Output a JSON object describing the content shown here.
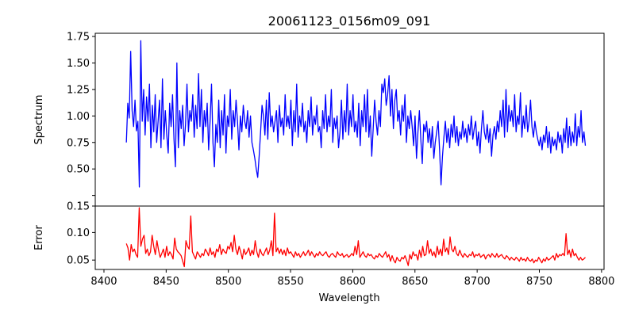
{
  "chart_data": [
    {
      "type": "line",
      "title": "20061123_0156m09_091",
      "xlabel": "",
      "ylabel": "Spectrum",
      "xlim": [
        8393,
        8802
      ],
      "ylim": [
        0.15,
        1.78
      ],
      "xticks": [
        8400,
        8450,
        8500,
        8550,
        8600,
        8650,
        8700,
        8750,
        8800
      ],
      "xtick_labels": [
        "8400",
        "8450",
        "8500",
        "8550",
        "8600",
        "8650",
        "8700",
        "8750",
        "8800"
      ],
      "yticks": [
        0.15,
        0.25,
        0.5,
        0.75,
        1.0,
        1.25,
        1.5,
        1.75
      ],
      "ytick_labels": [
        "0.15",
        "",
        "0.50",
        "0.75",
        "1.00",
        "1.25",
        "1.50",
        "1.75"
      ],
      "series": [
        {
          "name": "Spectrum",
          "color": "#0000ff",
          "x_start": 8418,
          "x_end": 8787,
          "values": [
            0.75,
            1.12,
            0.98,
            1.61,
            1.05,
            0.9,
            1.15,
            0.86,
            0.95,
            0.33,
            1.71,
            0.95,
            1.25,
            0.82,
            1.18,
            0.95,
            1.3,
            0.7,
            1.1,
            0.85,
            1.2,
            0.75,
            0.95,
            1.15,
            0.7,
            1.35,
            0.78,
            1.05,
            0.82,
            0.65,
            1.12,
            0.9,
            1.2,
            0.78,
            0.52,
            1.5,
            0.7,
            1.05,
            0.88,
            1.1,
            0.72,
            0.92,
            1.3,
            0.85,
            1.05,
            0.95,
            1.2,
            0.8,
            1.1,
            0.88,
            1.4,
            0.9,
            1.25,
            0.75,
            1.05,
            0.9,
            1.12,
            0.68,
            0.95,
            1.3,
            0.75,
            0.52,
            0.92,
            0.75,
            1.15,
            0.7,
            1.05,
            0.82,
            1.2,
            0.65,
            1.0,
            0.9,
            1.25,
            0.78,
            1.05,
            0.9,
            1.15,
            0.95,
            0.68,
            1.0,
            0.85,
            1.1,
            0.95,
            0.88,
            1.05,
            0.8,
            1.0,
            0.75,
            0.68,
            0.6,
            0.5,
            0.42,
            0.62,
            0.85,
            1.1,
            1.0,
            0.82,
            1.15,
            0.78,
            1.22,
            0.9,
            1.0,
            0.85,
            0.95,
            1.05,
            0.75,
            1.1,
            0.9,
            0.98,
            0.82,
            1.2,
            0.9,
            1.0,
            0.88,
            1.15,
            0.72,
            1.05,
            0.85,
            1.3,
            0.8,
            1.0,
            0.9,
            1.12,
            0.85,
            0.95,
            0.75,
            1.05,
            0.9,
            1.18,
            0.82,
            1.0,
            0.92,
            1.1,
            0.85,
            0.9,
            0.7,
            1.05,
            0.88,
            1.2,
            0.85,
            1.0,
            0.9,
            1.25,
            0.75,
            0.98,
            0.88,
            1.0,
            0.7,
            0.85,
            1.15,
            0.78,
            1.05,
            0.85,
            1.3,
            0.82,
            1.05,
            0.9,
            1.2,
            0.85,
            0.95,
            0.8,
            1.12,
            0.72,
            1.05,
            0.9,
            1.2,
            0.85,
            1.25,
            0.8,
            1.0,
            0.62,
            0.88,
            1.15,
            0.95,
            0.82,
            1.05,
            0.9,
            1.3,
            1.22,
            1.35,
            1.1,
            1.2,
            1.38,
            1.0,
            1.25,
            0.88,
            1.15,
            1.25,
            0.95,
            1.05,
            0.82,
            1.1,
            0.95,
            1.2,
            0.75,
            1.0,
            0.88,
            1.05,
            0.9,
            0.72,
            1.0,
            0.6,
            0.85,
            1.05,
            0.78,
            0.55,
            0.92,
            0.85,
            0.95,
            0.75,
            0.88,
            0.7,
            0.9,
            0.6,
            0.75,
            0.85,
            0.95,
            0.68,
            0.35,
            0.62,
            0.8,
            0.95,
            0.75,
            0.88,
            0.7,
            0.92,
            0.8,
            1.0,
            0.75,
            0.9,
            0.72,
            0.85,
            0.78,
            0.95,
            0.8,
            0.88,
            0.75,
            0.92,
            0.82,
            1.0,
            0.78,
            0.88,
            0.95,
            0.72,
            0.85,
            0.65,
            0.88,
            1.05,
            0.85,
            0.78,
            0.92,
            0.75,
            0.88,
            0.62,
            0.82,
            0.9,
            0.78,
            0.95,
            0.85,
            1.05,
            0.9,
            1.15,
            0.8,
            1.25,
            0.85,
            1.1,
            0.95,
            1.05,
            0.9,
            1.2,
            0.85,
            1.0,
            0.92,
            1.22,
            0.8,
            1.0,
            0.88,
            1.1,
            0.85,
            0.95,
            1.15,
            0.9,
            0.8,
            0.95,
            0.85,
            0.78,
            0.72,
            0.8,
            0.68,
            0.82,
            0.75,
            0.9,
            0.7,
            0.85,
            0.65,
            0.8,
            0.72,
            0.78,
            0.68,
            0.85,
            0.75,
            0.82,
            0.65,
            0.88,
            0.75,
            0.98,
            0.7,
            0.9,
            0.72,
            0.85,
            0.75,
            1.02,
            0.72,
            0.9,
            0.8,
            1.05,
            0.75,
            0.85,
            0.72
          ]
        }
      ]
    },
    {
      "type": "line",
      "title": "",
      "xlabel": "Wavelength",
      "ylabel": "Error",
      "xlim": [
        8393,
        8802
      ],
      "ylim": [
        0.033,
        0.148
      ],
      "xticks": [
        8400,
        8450,
        8500,
        8550,
        8600,
        8650,
        8700,
        8750,
        8800
      ],
      "xtick_labels": [
        "8400",
        "8450",
        "8500",
        "8550",
        "8600",
        "8650",
        "8700",
        "8750",
        "8800"
      ],
      "yticks": [
        0.05,
        0.1
      ],
      "ytick_labels": [
        "0.05",
        "0.10"
      ],
      "series": [
        {
          "name": "Error",
          "color": "#ff0000",
          "x_start": 8418,
          "x_end": 8787,
          "values": [
            0.08,
            0.072,
            0.05,
            0.078,
            0.065,
            0.07,
            0.06,
            0.055,
            0.145,
            0.075,
            0.088,
            0.095,
            0.062,
            0.07,
            0.058,
            0.065,
            0.095,
            0.075,
            0.06,
            0.085,
            0.068,
            0.055,
            0.062,
            0.07,
            0.055,
            0.075,
            0.058,
            0.065,
            0.06,
            0.052,
            0.09,
            0.07,
            0.065,
            0.062,
            0.058,
            0.048,
            0.038,
            0.085,
            0.075,
            0.07,
            0.13,
            0.065,
            0.058,
            0.052,
            0.065,
            0.06,
            0.055,
            0.062,
            0.058,
            0.07,
            0.065,
            0.058,
            0.072,
            0.06,
            0.065,
            0.055,
            0.07,
            0.065,
            0.078,
            0.06,
            0.07,
            0.065,
            0.062,
            0.075,
            0.07,
            0.082,
            0.065,
            0.095,
            0.07,
            0.06,
            0.075,
            0.065,
            0.052,
            0.07,
            0.06,
            0.065,
            0.072,
            0.058,
            0.068,
            0.06,
            0.085,
            0.065,
            0.055,
            0.07,
            0.062,
            0.058,
            0.065,
            0.072,
            0.06,
            0.068,
            0.085,
            0.058,
            0.135,
            0.065,
            0.072,
            0.062,
            0.07,
            0.06,
            0.068,
            0.058,
            0.072,
            0.062,
            0.065,
            0.06,
            0.055,
            0.065,
            0.058,
            0.062,
            0.055,
            0.06,
            0.065,
            0.058,
            0.062,
            0.068,
            0.058,
            0.065,
            0.06,
            0.055,
            0.062,
            0.058,
            0.065,
            0.06,
            0.058,
            0.062,
            0.065,
            0.058,
            0.055,
            0.06,
            0.062,
            0.058,
            0.055,
            0.065,
            0.06,
            0.058,
            0.062,
            0.055,
            0.058,
            0.06,
            0.055,
            0.058,
            0.062,
            0.058,
            0.075,
            0.06,
            0.085,
            0.055,
            0.06,
            0.065,
            0.058,
            0.055,
            0.062,
            0.058,
            0.06,
            0.055,
            0.052,
            0.058,
            0.055,
            0.062,
            0.058,
            0.055,
            0.06,
            0.065,
            0.055,
            0.06,
            0.048,
            0.058,
            0.05,
            0.045,
            0.055,
            0.05,
            0.048,
            0.055,
            0.052,
            0.058,
            0.05,
            0.04,
            0.06,
            0.052,
            0.065,
            0.058,
            0.06,
            0.05,
            0.068,
            0.055,
            0.075,
            0.058,
            0.06,
            0.085,
            0.062,
            0.07,
            0.058,
            0.065,
            0.055,
            0.075,
            0.06,
            0.07,
            0.058,
            0.088,
            0.065,
            0.072,
            0.06,
            0.092,
            0.07,
            0.065,
            0.075,
            0.062,
            0.058,
            0.068,
            0.06,
            0.055,
            0.062,
            0.058,
            0.055,
            0.06,
            0.058,
            0.065,
            0.055,
            0.06,
            0.058,
            0.062,
            0.055,
            0.058,
            0.06,
            0.052,
            0.058,
            0.06,
            0.055,
            0.062,
            0.058,
            0.055,
            0.062,
            0.055,
            0.058,
            0.06,
            0.055,
            0.052,
            0.058,
            0.055,
            0.05,
            0.055,
            0.052,
            0.05,
            0.055,
            0.052,
            0.048,
            0.055,
            0.05,
            0.052,
            0.048,
            0.055,
            0.05,
            0.048,
            0.052,
            0.045,
            0.05,
            0.048,
            0.055,
            0.05,
            0.045,
            0.052,
            0.048,
            0.055,
            0.05,
            0.052,
            0.055,
            0.058,
            0.05,
            0.062,
            0.055,
            0.06,
            0.058,
            0.062,
            0.058,
            0.098,
            0.06,
            0.068,
            0.055,
            0.07,
            0.058,
            0.062,
            0.055,
            0.05,
            0.055,
            0.05,
            0.052,
            0.055
          ]
        }
      ]
    }
  ]
}
